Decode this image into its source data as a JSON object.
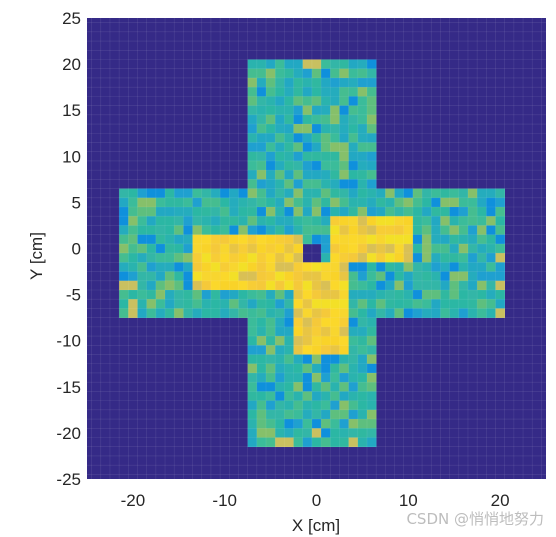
{
  "chart_data": {
    "type": "heatmap",
    "title": "",
    "xlabel": "X [cm]",
    "ylabel": "Y [cm]",
    "xlim": [
      -25,
      25
    ],
    "ylim": [
      -25,
      25
    ],
    "xticks": [
      -20,
      -10,
      0,
      10,
      20
    ],
    "yticks": [
      25,
      20,
      15,
      10,
      5,
      0,
      -5,
      -10,
      -15,
      -20,
      -25
    ],
    "cell_size_cm": 1,
    "grid": true,
    "colormap": "parula",
    "background_color": "#352a87",
    "regions": {
      "vertical_bar": {
        "x": [
          -7.5,
          6.5
        ],
        "y": [
          -21.5,
          20.5
        ]
      },
      "horizontal_bar": {
        "x": [
          -21.5,
          20.5
        ],
        "y": [
          -7.5,
          6.5
        ]
      },
      "hot_left_arm": {
        "x": [
          -13.5,
          -1.5
        ],
        "y": [
          -4.5,
          1.5
        ]
      },
      "hot_right_arm": {
        "x": [
          1.5,
          10.5
        ],
        "y": [
          -1.5,
          3.5
        ]
      },
      "hot_lower_arm": {
        "x": [
          -2.5,
          3.5
        ],
        "y": [
          -11.5,
          -1.5
        ]
      },
      "hole": {
        "x": [
          -1.5,
          0.5
        ],
        "y": [
          -1.5,
          0.5
        ]
      }
    }
  },
  "watermark": "CSDN @悄悄地努力"
}
